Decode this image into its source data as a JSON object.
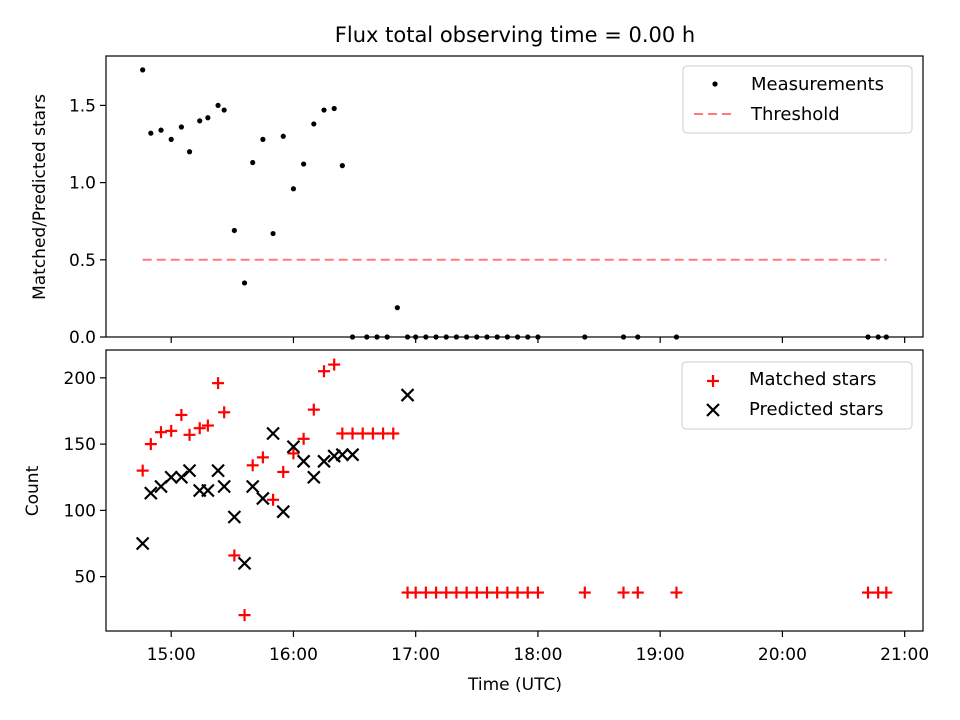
{
  "chart_data": [
    {
      "type": "scatter",
      "title": "Flux total observing time = 0.00 h",
      "xlabel": "",
      "ylabel": "Matched/Predicted stars",
      "xlim": [
        "14:28",
        "21:09"
      ],
      "ylim": [
        0,
        1.82
      ],
      "yticks": [
        0.0,
        0.5,
        1.0,
        1.5
      ],
      "ytick_labels": [
        "0.0",
        "0.5",
        "1.0",
        "1.5"
      ],
      "legend_position": "upper right",
      "threshold": {
        "name": "Threshold",
        "value": 0.5,
        "x_start": "14:46",
        "x_end": "20:51",
        "color": "#ff7b7b"
      },
      "series": [
        {
          "name": "Measurements",
          "color": "#000000",
          "marker": "dot",
          "x": [
            "14:46",
            "14:50",
            "14:55",
            "15:00",
            "15:05",
            "15:09",
            "15:14",
            "15:18",
            "15:23",
            "15:26",
            "15:31",
            "15:36",
            "15:40",
            "15:45",
            "15:50",
            "15:55",
            "16:00",
            "16:05",
            "16:10",
            "16:15",
            "16:20",
            "16:24",
            "16:29",
            "16:36",
            "16:41",
            "16:46",
            "16:51",
            "16:56",
            "17:00",
            "17:05",
            "17:10",
            "17:15",
            "17:20",
            "17:25",
            "17:30",
            "17:35",
            "17:40",
            "17:45",
            "17:50",
            "17:55",
            "18:00",
            "18:23",
            "18:42",
            "18:49",
            "19:08",
            "20:42",
            "20:47",
            "20:51"
          ],
          "y": [
            1.73,
            1.32,
            1.34,
            1.28,
            1.36,
            1.2,
            1.4,
            1.42,
            1.5,
            1.47,
            0.69,
            0.35,
            1.13,
            1.28,
            0.67,
            1.3,
            0.96,
            1.12,
            1.38,
            1.47,
            1.48,
            1.11,
            0,
            0,
            0,
            0,
            0.19,
            0,
            0,
            0,
            0,
            0,
            0,
            0,
            0,
            0,
            0,
            0,
            0,
            0,
            0,
            0,
            0,
            0,
            0,
            0,
            0,
            0
          ]
        }
      ]
    },
    {
      "type": "scatter",
      "title": "",
      "xlabel": "Time (UTC)",
      "ylabel": "Count",
      "xlim": [
        "14:28",
        "21:09"
      ],
      "ylim": [
        9,
        221
      ],
      "yticks": [
        50,
        100,
        150,
        200
      ],
      "ytick_labels": [
        "50",
        "100",
        "150",
        "200"
      ],
      "xtick_labels": [
        "15:00",
        "16:00",
        "17:00",
        "18:00",
        "19:00",
        "20:00",
        "21:00"
      ],
      "legend_position": "upper right",
      "series": [
        {
          "name": "Matched stars",
          "color": "#ff0000",
          "marker": "plus",
          "x": [
            "14:46",
            "14:50",
            "14:55",
            "15:00",
            "15:05",
            "15:09",
            "15:14",
            "15:18",
            "15:23",
            "15:26",
            "15:31",
            "15:36",
            "15:40",
            "15:45",
            "15:50",
            "15:55",
            "16:00",
            "16:05",
            "16:10",
            "16:15",
            "16:20",
            "16:24",
            "16:29",
            "16:34",
            "16:39",
            "16:44",
            "16:49",
            "16:56",
            "17:00",
            "17:05",
            "17:10",
            "17:15",
            "17:20",
            "17:25",
            "17:30",
            "17:35",
            "17:40",
            "17:45",
            "17:50",
            "17:55",
            "18:00",
            "18:23",
            "18:42",
            "18:49",
            "19:08",
            "20:42",
            "20:47",
            "20:51"
          ],
          "y": [
            130,
            150,
            159,
            160,
            172,
            157,
            162,
            164,
            196,
            174,
            66,
            21,
            134,
            140,
            108,
            129,
            143,
            154,
            176,
            205,
            210,
            158,
            158,
            158,
            158,
            158,
            158,
            38,
            38,
            38,
            38,
            38,
            38,
            38,
            38,
            38,
            38,
            38,
            38,
            38,
            38,
            38,
            38,
            38,
            38,
            38,
            38,
            38
          ]
        },
        {
          "name": "Predicted stars",
          "color": "#000000",
          "marker": "x",
          "x": [
            "14:46",
            "14:50",
            "14:55",
            "15:00",
            "15:05",
            "15:09",
            "15:14",
            "15:18",
            "15:23",
            "15:26",
            "15:31",
            "15:36",
            "15:40",
            "15:45",
            "15:50",
            "15:55",
            "16:00",
            "16:05",
            "16:10",
            "16:15",
            "16:20",
            "16:24",
            "16:29",
            "16:56"
          ],
          "y": [
            75,
            113,
            118,
            125,
            125,
            130,
            115,
            115,
            130,
            118,
            95,
            60,
            118,
            109,
            158,
            99,
            148,
            137,
            125,
            137,
            141,
            142,
            142,
            187
          ]
        }
      ]
    }
  ]
}
